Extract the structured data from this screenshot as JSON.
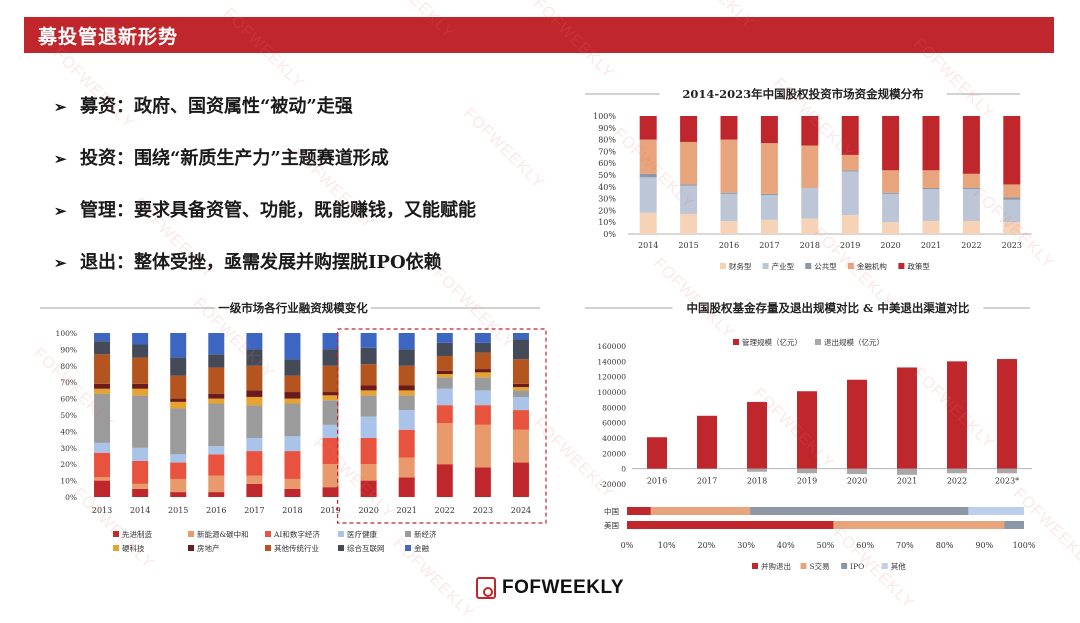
{
  "header": {
    "title": "募投管退新形势"
  },
  "bullets": [
    {
      "label": "募资",
      "text": "：政府、国资属性“被动”走强"
    },
    {
      "label": "投资",
      "text": "：围绕“新质生产力”主题赛道形成"
    },
    {
      "label": "管理",
      "text": "：要求具备资管、功能，既能赚钱，又能赋能"
    },
    {
      "label": "退出",
      "text": "：整体受挫，亟需发展并购摆脱IPO依赖"
    }
  ],
  "watermark": "FOFWEEKLY",
  "logo": {
    "name": "FOFWEEKLY"
  },
  "chart_data": [
    {
      "type": "bar",
      "stacked": true,
      "title": "2014-2023年中国股权投资市场资金规模分布",
      "categories": [
        "2014",
        "2015",
        "2016",
        "2017",
        "2018",
        "2019",
        "2020",
        "2021",
        "2022",
        "2023"
      ],
      "ylim": [
        0,
        100
      ],
      "yticks": [
        "0%",
        "10%",
        "20%",
        "30%",
        "40%",
        "50%",
        "60%",
        "70%",
        "80%",
        "90%",
        "100%"
      ],
      "legend_position": "bottom",
      "series": [
        {
          "name": "财务型",
          "color": "#f6d3b6",
          "values": [
            18,
            17,
            11,
            12,
            13,
            16,
            10,
            11,
            11,
            10
          ]
        },
        {
          "name": "产业型",
          "color": "#bcc6d6",
          "values": [
            30,
            24,
            23,
            21,
            26,
            37,
            24,
            27,
            27,
            19
          ]
        },
        {
          "name": "公共型",
          "color": "#8e97a6",
          "values": [
            3,
            1,
            1,
            1,
            0,
            1,
            1,
            1,
            1,
            2
          ]
        },
        {
          "name": "金融机构",
          "color": "#e8a57d",
          "values": [
            29,
            36,
            45,
            43,
            36,
            13,
            19,
            15,
            12,
            11
          ]
        },
        {
          "name": "政策型",
          "color": "#c0272d",
          "values": [
            20,
            22,
            20,
            23,
            25,
            33,
            46,
            46,
            49,
            58
          ]
        }
      ]
    },
    {
      "type": "bar",
      "stacked": true,
      "title": "一级市场各行业融资规模变化",
      "categories": [
        "2013",
        "2014",
        "2015",
        "2016",
        "2017",
        "2018",
        "2019",
        "2020",
        "2021",
        "2022",
        "2023",
        "2024"
      ],
      "ylim": [
        0,
        100
      ],
      "yticks": [
        "0%",
        "10%",
        "20%",
        "30%",
        "40%",
        "50%",
        "60%",
        "70%",
        "80%",
        "90%",
        "100%"
      ],
      "annotation": "dashed box around 2020-2024",
      "legend_position": "bottom",
      "series": [
        {
          "name": "先进制造",
          "color": "#c0272d",
          "values": [
            10,
            5,
            3,
            3,
            8,
            5,
            6,
            10,
            12,
            20,
            18,
            21
          ]
        },
        {
          "name": "新能源&碳中和",
          "color": "#e89a6c",
          "values": [
            2,
            3,
            8,
            10,
            5,
            6,
            14,
            10,
            12,
            25,
            26,
            20
          ]
        },
        {
          "name": "AI和数字经济",
          "color": "#e8533f",
          "values": [
            15,
            14,
            10,
            13,
            15,
            17,
            16,
            16,
            17,
            11,
            12,
            12
          ]
        },
        {
          "name": "医疗健康",
          "color": "#a9c4e8",
          "values": [
            6,
            8,
            5,
            5,
            8,
            9,
            8,
            13,
            12,
            10,
            9,
            8
          ]
        },
        {
          "name": "新经济",
          "color": "#9b9b9b",
          "values": [
            30,
            32,
            28,
            26,
            20,
            20,
            15,
            13,
            9,
            7,
            8,
            4
          ]
        },
        {
          "name": "硬科技",
          "color": "#e8a22e",
          "values": [
            3,
            4,
            4,
            3,
            5,
            3,
            3,
            3,
            3,
            2,
            3,
            2
          ]
        },
        {
          "name": "房地产",
          "color": "#6a1c1c",
          "values": [
            3,
            3,
            2,
            3,
            4,
            4,
            2,
            3,
            3,
            2,
            2,
            2
          ]
        },
        {
          "name": "其他传统行业",
          "color": "#b4541e",
          "values": [
            18,
            16,
            14,
            16,
            15,
            10,
            16,
            13,
            12,
            9,
            10,
            15
          ]
        },
        {
          "name": "综合互联网",
          "color": "#444a58",
          "values": [
            8,
            8,
            11,
            8,
            10,
            10,
            10,
            10,
            10,
            8,
            6,
            12
          ]
        },
        {
          "name": "金融",
          "color": "#3d66c3",
          "values": [
            5,
            7,
            15,
            13,
            10,
            16,
            10,
            9,
            10,
            6,
            6,
            4
          ]
        }
      ]
    },
    {
      "type": "bar",
      "title": "中国股权基金存量及退出规模对比 & 中美退出渠道对比",
      "categories": [
        "2016",
        "2017",
        "2018",
        "2019",
        "2020",
        "2021",
        "2022",
        "2023*"
      ],
      "ylim": [
        -20000,
        160000
      ],
      "yticks": [
        "-20000",
        "0",
        "20000",
        "40000",
        "60000",
        "80000",
        "100000",
        "120000",
        "140000",
        "160000"
      ],
      "legend_position": "top",
      "series": [
        {
          "name": "管理规模（亿元）",
          "color": "#c0272d",
          "values": [
            41000,
            69000,
            87000,
            101000,
            116000,
            132000,
            140000,
            143000
          ]
        },
        {
          "name": "退出规模（亿元）",
          "color": "#a8a8a8",
          "values": [
            -300,
            -500,
            -4000,
            -6000,
            -7000,
            -8000,
            -6000,
            -6000
          ]
        }
      ]
    },
    {
      "type": "bar",
      "stacked": true,
      "orientation": "horizontal",
      "categories": [
        "中国",
        "美国"
      ],
      "xlim": [
        0,
        100
      ],
      "xticks": [
        "0%",
        "10%",
        "20%",
        "30%",
        "40%",
        "50%",
        "60%",
        "70%",
        "80%",
        "90%",
        "100%"
      ],
      "legend_position": "bottom",
      "series": [
        {
          "name": "并购退出",
          "color": "#c0272d",
          "values": [
            6,
            52
          ]
        },
        {
          "name": "S交易",
          "color": "#e8a57d",
          "values": [
            25,
            43
          ]
        },
        {
          "name": "IPO",
          "color": "#8e97a6",
          "values": [
            55,
            5
          ]
        },
        {
          "name": "其他",
          "color": "#bcd0ec",
          "values": [
            14,
            0
          ]
        }
      ]
    }
  ]
}
